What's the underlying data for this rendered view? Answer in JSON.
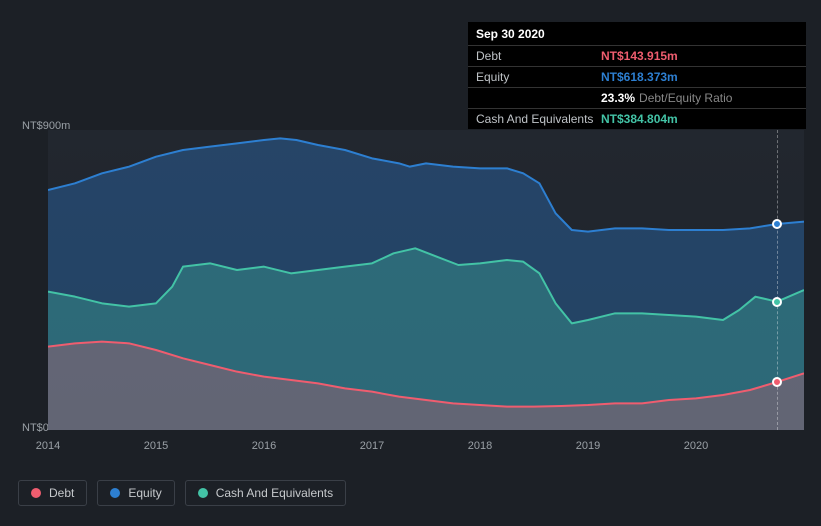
{
  "tooltip": {
    "date": "Sep 30 2020",
    "rows": [
      {
        "label": "Debt",
        "value": "NT$143.915m",
        "color": "#ef5d6f"
      },
      {
        "label": "Equity",
        "value": "NT$618.373m",
        "color": "#2d7fd1"
      },
      {
        "label": "",
        "value": "23.3%",
        "sub": "Debt/Equity Ratio",
        "color": "#ffffff"
      },
      {
        "label": "Cash And Equivalents",
        "value": "NT$384.804m",
        "color": "#43c3a6"
      }
    ]
  },
  "chart": {
    "type": "area",
    "background_gradient": [
      "#22272f",
      "#1e232a"
    ],
    "y": {
      "min": 0,
      "max": 900,
      "labels": {
        "top": "NT$900m",
        "bottom": "NT$0"
      },
      "label_fontsize": 11,
      "label_color": "#9aa0a6"
    },
    "x": {
      "min": 2014,
      "max": 2021,
      "ticks": [
        2014,
        2015,
        2016,
        2017,
        2018,
        2019,
        2020
      ],
      "label_fontsize": 11,
      "label_color": "#9aa0a6"
    },
    "cursor_x": 2020.75,
    "series": [
      {
        "name": "Equity",
        "color": "#2d7fd1",
        "fill": "rgba(45,127,209,0.35)",
        "line_width": 2,
        "points": [
          [
            2014.0,
            720
          ],
          [
            2014.25,
            740
          ],
          [
            2014.5,
            770
          ],
          [
            2014.75,
            790
          ],
          [
            2015.0,
            820
          ],
          [
            2015.25,
            840
          ],
          [
            2015.5,
            850
          ],
          [
            2015.75,
            860
          ],
          [
            2016.0,
            870
          ],
          [
            2016.15,
            875
          ],
          [
            2016.3,
            870
          ],
          [
            2016.5,
            855
          ],
          [
            2016.75,
            840
          ],
          [
            2017.0,
            815
          ],
          [
            2017.25,
            800
          ],
          [
            2017.35,
            790
          ],
          [
            2017.5,
            800
          ],
          [
            2017.75,
            790
          ],
          [
            2018.0,
            785
          ],
          [
            2018.25,
            785
          ],
          [
            2018.4,
            770
          ],
          [
            2018.55,
            740
          ],
          [
            2018.7,
            650
          ],
          [
            2018.85,
            600
          ],
          [
            2019.0,
            595
          ],
          [
            2019.25,
            605
          ],
          [
            2019.5,
            605
          ],
          [
            2019.75,
            600
          ],
          [
            2020.0,
            600
          ],
          [
            2020.25,
            600
          ],
          [
            2020.5,
            605
          ],
          [
            2020.75,
            618
          ],
          [
            2021.0,
            625
          ]
        ],
        "marker_value": 618
      },
      {
        "name": "Cash And Equivalents",
        "color": "#43c3a6",
        "fill": "rgba(67,195,166,0.30)",
        "line_width": 2,
        "points": [
          [
            2014.0,
            415
          ],
          [
            2014.25,
            400
          ],
          [
            2014.5,
            380
          ],
          [
            2014.75,
            370
          ],
          [
            2015.0,
            380
          ],
          [
            2015.15,
            430
          ],
          [
            2015.25,
            490
          ],
          [
            2015.5,
            500
          ],
          [
            2015.75,
            480
          ],
          [
            2016.0,
            490
          ],
          [
            2016.25,
            470
          ],
          [
            2016.5,
            480
          ],
          [
            2016.75,
            490
          ],
          [
            2017.0,
            500
          ],
          [
            2017.2,
            530
          ],
          [
            2017.4,
            545
          ],
          [
            2017.6,
            520
          ],
          [
            2017.8,
            495
          ],
          [
            2018.0,
            500
          ],
          [
            2018.25,
            510
          ],
          [
            2018.4,
            505
          ],
          [
            2018.55,
            470
          ],
          [
            2018.7,
            380
          ],
          [
            2018.85,
            320
          ],
          [
            2019.0,
            330
          ],
          [
            2019.25,
            350
          ],
          [
            2019.5,
            350
          ],
          [
            2019.75,
            345
          ],
          [
            2020.0,
            340
          ],
          [
            2020.25,
            330
          ],
          [
            2020.4,
            360
          ],
          [
            2020.55,
            400
          ],
          [
            2020.75,
            385
          ],
          [
            2021.0,
            420
          ]
        ],
        "marker_value": 385
      },
      {
        "name": "Debt",
        "color": "#ef5d6f",
        "fill": "rgba(239,93,111,0.28)",
        "line_width": 2,
        "points": [
          [
            2014.0,
            250
          ],
          [
            2014.25,
            260
          ],
          [
            2014.5,
            265
          ],
          [
            2014.75,
            260
          ],
          [
            2015.0,
            240
          ],
          [
            2015.25,
            215
          ],
          [
            2015.5,
            195
          ],
          [
            2015.75,
            175
          ],
          [
            2016.0,
            160
          ],
          [
            2016.25,
            150
          ],
          [
            2016.5,
            140
          ],
          [
            2016.75,
            125
          ],
          [
            2017.0,
            115
          ],
          [
            2017.25,
            100
          ],
          [
            2017.5,
            90
          ],
          [
            2017.75,
            80
          ],
          [
            2018.0,
            75
          ],
          [
            2018.25,
            70
          ],
          [
            2018.5,
            70
          ],
          [
            2018.75,
            72
          ],
          [
            2019.0,
            75
          ],
          [
            2019.25,
            80
          ],
          [
            2019.5,
            80
          ],
          [
            2019.75,
            90
          ],
          [
            2020.0,
            95
          ],
          [
            2020.25,
            105
          ],
          [
            2020.5,
            120
          ],
          [
            2020.75,
            144
          ],
          [
            2021.0,
            170
          ]
        ],
        "marker_value": 144
      }
    ]
  },
  "legend": {
    "items": [
      {
        "label": "Debt",
        "color": "#ef5d6f"
      },
      {
        "label": "Equity",
        "color": "#2d7fd1"
      },
      {
        "label": "Cash And Equivalents",
        "color": "#43c3a6"
      }
    ],
    "border_color": "#3a3f47",
    "fontsize": 12
  }
}
